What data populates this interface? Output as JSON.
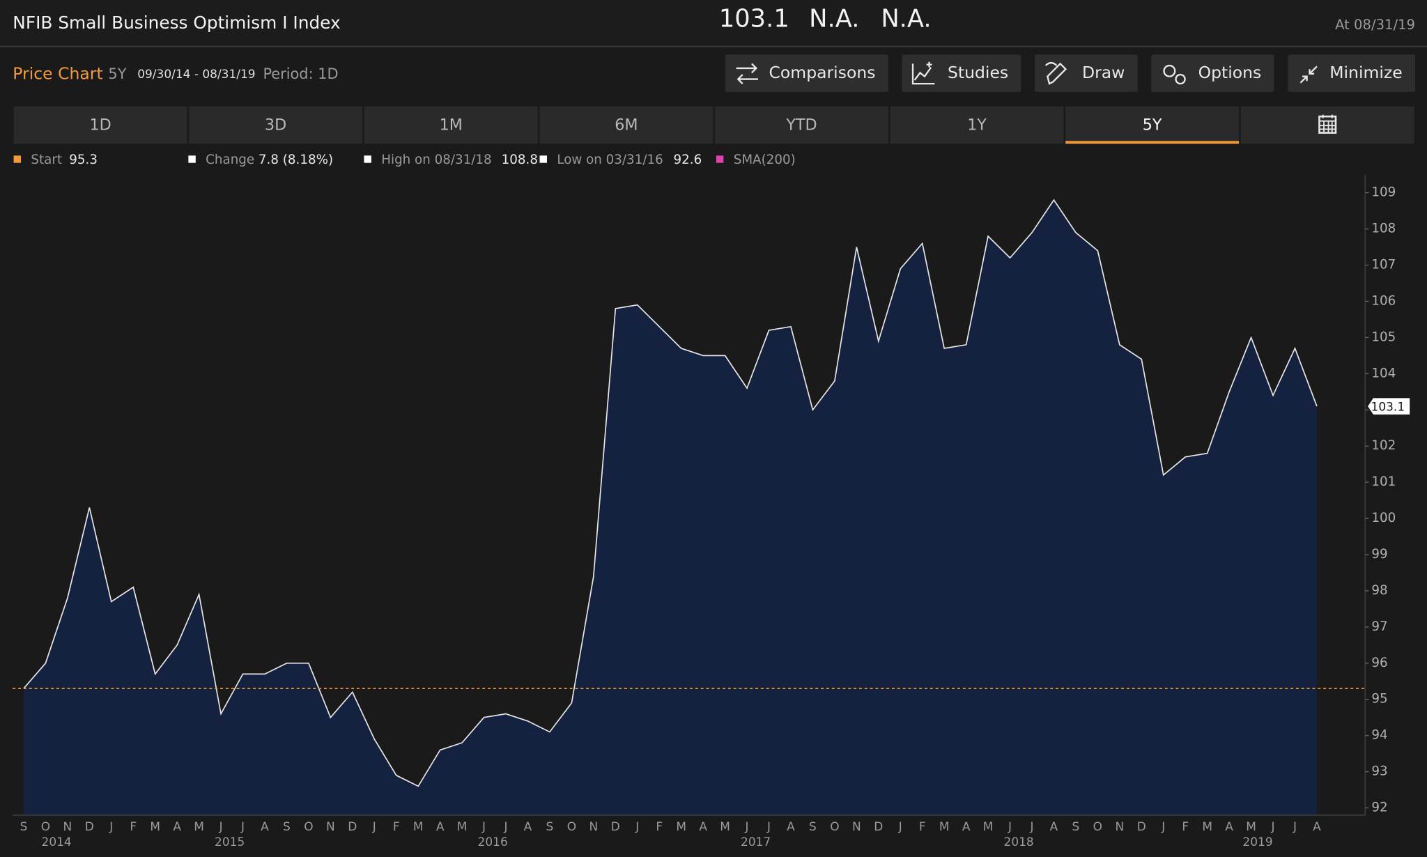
{
  "header": {
    "title": "NFIB Small Business Optimism I Index",
    "last": 103.1,
    "change": "N.A.",
    "pct_change": "N.A.",
    "as_of": "At 08/31/19"
  },
  "toolbar": {
    "label": "Price Chart",
    "range": "5Y",
    "dates": "09/30/14 - 08/31/19",
    "period": "Period: 1D",
    "buttons": [
      "Comparisons",
      "Studies",
      "Draw",
      "Options",
      "Minimize"
    ]
  },
  "tabs": {
    "items": [
      "1D",
      "3D",
      "1M",
      "6M",
      "YTD",
      "1Y",
      "5Y"
    ],
    "active": 6
  },
  "chart_data": {
    "type": "area",
    "categories": [
      "S",
      "O",
      "N",
      "D",
      "J",
      "F",
      "M",
      "A",
      "M",
      "J",
      "J",
      "A",
      "S",
      "O",
      "N",
      "D",
      "J",
      "F",
      "M",
      "A",
      "M",
      "J",
      "J",
      "A",
      "S",
      "O",
      "N",
      "D",
      "J",
      "F",
      "M",
      "A",
      "M",
      "J",
      "J",
      "A",
      "S",
      "O",
      "N",
      "D",
      "J",
      "F",
      "M",
      "A",
      "M",
      "J",
      "J",
      "A",
      "S",
      "O",
      "N",
      "D",
      "J",
      "F",
      "M",
      "A",
      "M",
      "J",
      "J",
      "A"
    ],
    "year_labels": [
      "2014",
      "2015",
      "2016",
      "2017",
      "2018",
      "2019"
    ],
    "series": [
      {
        "color": "#e6e6e6",
        "fill": "#14213f",
        "values": [
          95.3,
          96.0,
          97.8,
          100.3,
          97.7,
          98.1,
          95.7,
          96.5,
          97.9,
          94.6,
          95.7,
          95.7,
          96.0,
          96.0,
          94.5,
          95.2,
          93.9,
          92.9,
          92.6,
          93.6,
          93.8,
          94.5,
          94.6,
          94.4,
          94.1,
          94.9,
          98.4,
          105.8,
          105.9,
          105.3,
          104.7,
          104.5,
          104.5,
          103.6,
          105.2,
          105.3,
          103.0,
          103.8,
          107.5,
          104.9,
          106.9,
          107.6,
          104.7,
          104.8,
          107.8,
          107.2,
          107.9,
          108.8,
          107.9,
          107.4,
          104.8,
          104.4,
          101.2,
          101.7,
          101.8,
          103.5,
          105.0,
          103.4,
          104.7,
          103.1
        ]
      }
    ],
    "ylim": [
      91.8,
      109.5
    ],
    "yticks": [
      92,
      93,
      94,
      95,
      96,
      97,
      98,
      99,
      100,
      101,
      102,
      103,
      104,
      105,
      106,
      107,
      108,
      109
    ],
    "legend": [
      {
        "label": "Start",
        "value": 95.3,
        "color": "#f39a3a"
      },
      {
        "label": "Change",
        "value_text": "7.8 (8.18%)",
        "color": "#ffffff"
      },
      {
        "label": "High on 08/31/18",
        "value": 108.8,
        "color": "#ffffff"
      },
      {
        "label": "Low on 03/31/16",
        "value": 92.6,
        "color": "#ffffff"
      },
      {
        "label": "SMA(200)",
        "color": "#e040b0"
      }
    ]
  }
}
